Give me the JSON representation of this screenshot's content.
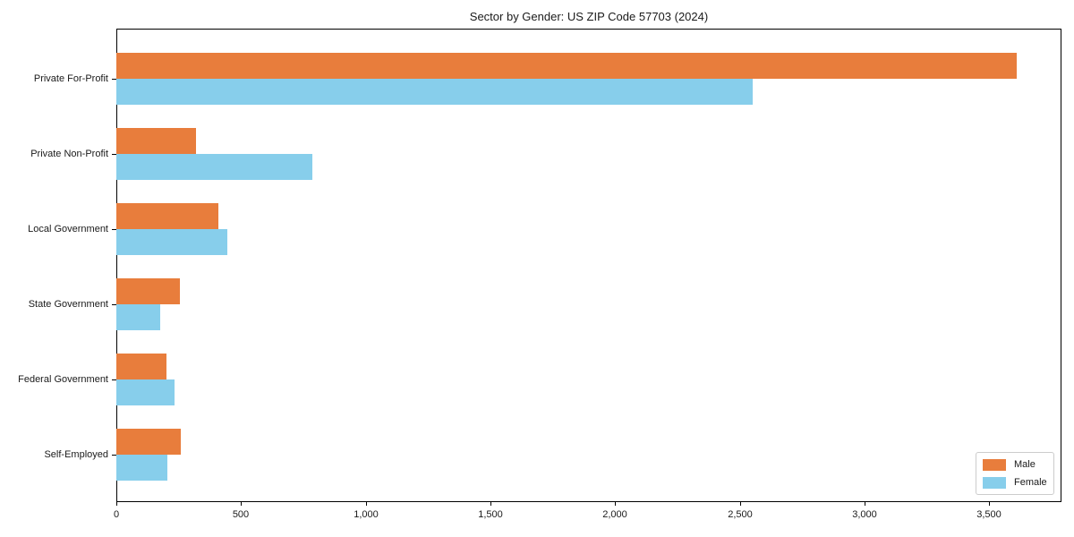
{
  "chart_data": {
    "type": "bar",
    "orientation": "horizontal",
    "title": "Sector by Gender: US ZIP Code 57703 (2024)",
    "categories": [
      "Private For-Profit",
      "Private Non-Profit",
      "Local Government",
      "State Government",
      "Federal Government",
      "Self-Employed"
    ],
    "series": [
      {
        "name": "Male",
        "color": "#e87d3c",
        "values": [
          3610,
          320,
          410,
          255,
          200,
          260
        ]
      },
      {
        "name": "Female",
        "color": "#87ceeb",
        "values": [
          2550,
          785,
          445,
          175,
          235,
          205
        ]
      }
    ],
    "xlim": [
      0,
      3790
    ],
    "xticks": [
      0,
      500,
      1000,
      1500,
      2000,
      2500,
      3000,
      3500
    ],
    "xtick_labels": [
      "0",
      "500",
      "1,000",
      "1,500",
      "2,000",
      "2,500",
      "3,000",
      "3,500"
    ],
    "legend_position": "lower right",
    "grid": false,
    "background": "#ffffff",
    "axis_color": "#000000"
  }
}
